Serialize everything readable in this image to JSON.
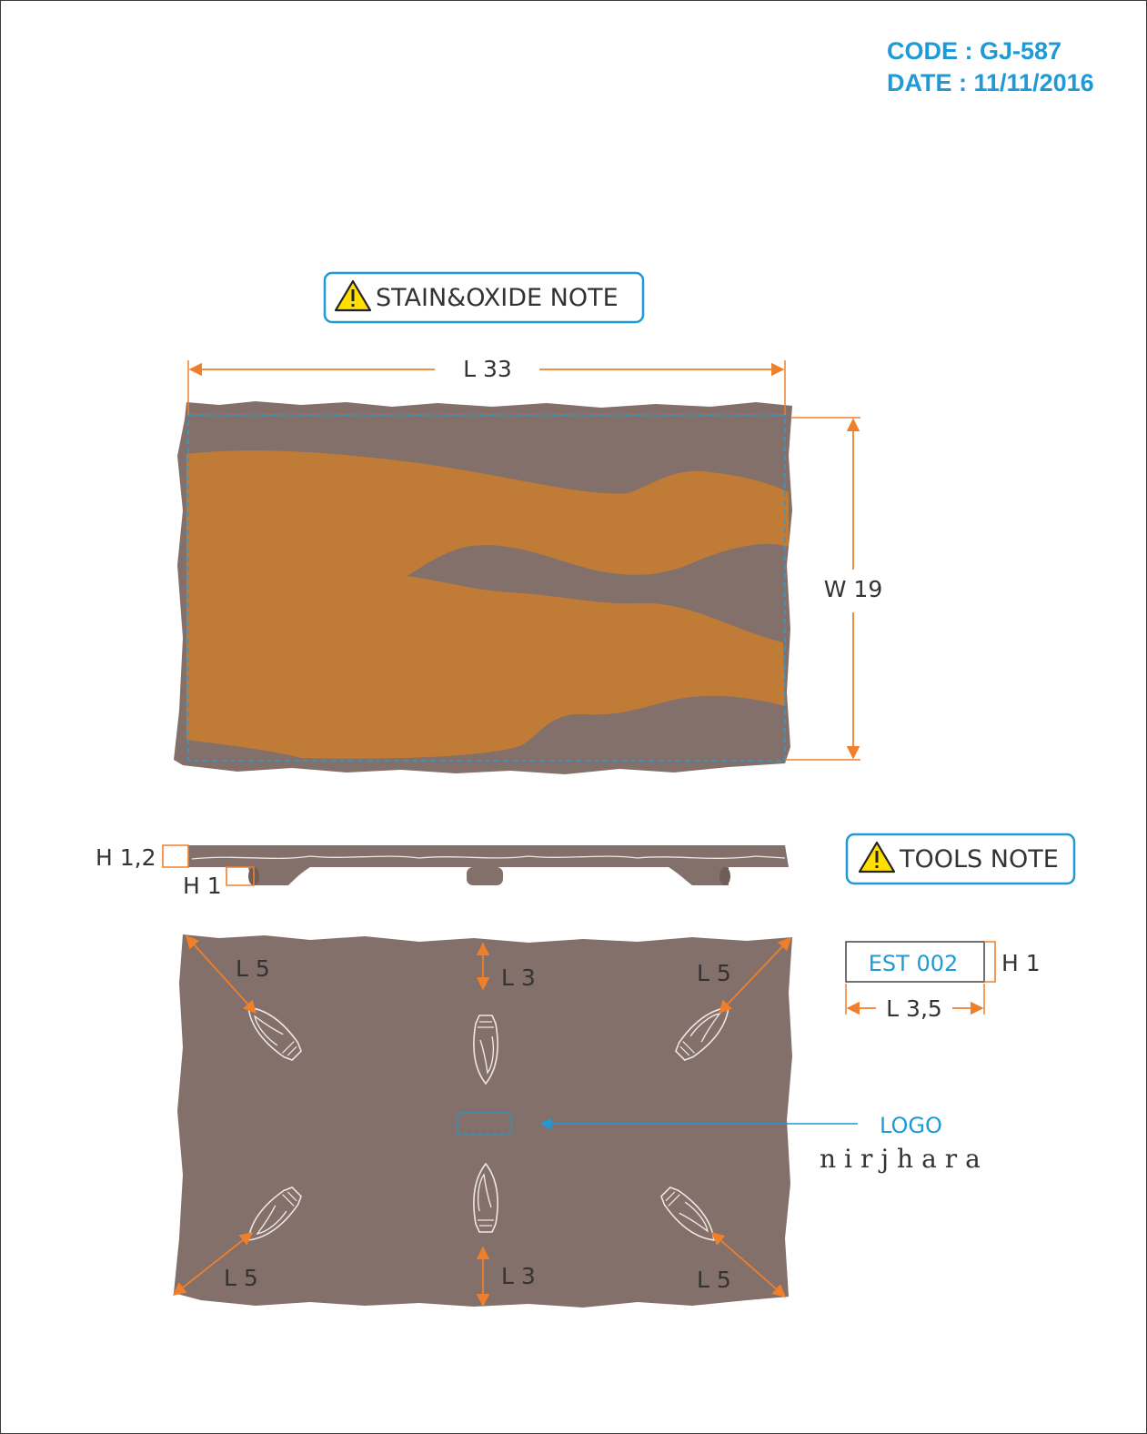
{
  "header": {
    "code": "CODE : GJ-587",
    "date": "DATE : 11/11/2016"
  },
  "notes": {
    "stain": "STAIN&OXIDE NOTE",
    "tools": "TOOLS NOTE"
  },
  "icons": {
    "note_icon": "warning-triangle-icon"
  },
  "top_view": {
    "length_label": "L 33",
    "width_label": "W 19"
  },
  "side_view": {
    "thickness_label": "H 1,2",
    "foot_height_label": "H 1"
  },
  "bottom_view": {
    "feet_labels": {
      "top_left": "L 5",
      "top_center": "L 3",
      "top_right": "L 5",
      "bottom_left": "L 5",
      "bottom_center": "L 3",
      "bottom_right": "L 5"
    },
    "logo_label": "LOGO",
    "brand": "nirjhara"
  },
  "tool_spec": {
    "name": "EST 002",
    "height_label": "H 1",
    "length_label": "L 3,5"
  },
  "colors": {
    "clay": "#83706a",
    "glaze_orange": "#c07c36",
    "dimension": "#f07f2b",
    "accent_blue": "#1e9ad6",
    "warning_yellow": "#ffde00"
  }
}
